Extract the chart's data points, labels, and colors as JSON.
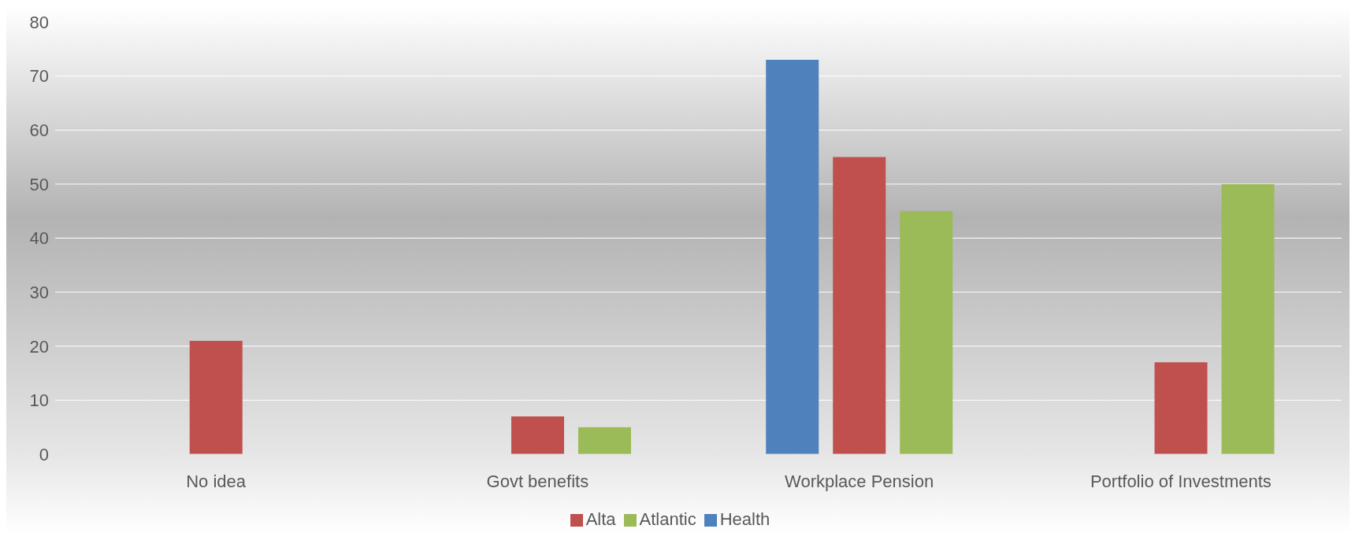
{
  "chart_data": {
    "type": "bar",
    "categories": [
      "No idea",
      "Govt benefits",
      "Workplace Pension",
      "Portfolio of Investments"
    ],
    "series": [
      {
        "name": "Health",
        "color": "#4f81bd",
        "values": [
          null,
          null,
          73,
          null
        ]
      },
      {
        "name": "Alta",
        "color": "#c0504d",
        "values": [
          21,
          7,
          55,
          17
        ]
      },
      {
        "name": "Atlantic",
        "color": "#9bbb59",
        "values": [
          null,
          5,
          45,
          50
        ]
      }
    ],
    "ylim": [
      0,
      80
    ],
    "yticks": [
      0,
      10,
      20,
      30,
      40,
      50,
      60,
      70,
      80
    ],
    "grid": "y",
    "legend": "bottom"
  }
}
